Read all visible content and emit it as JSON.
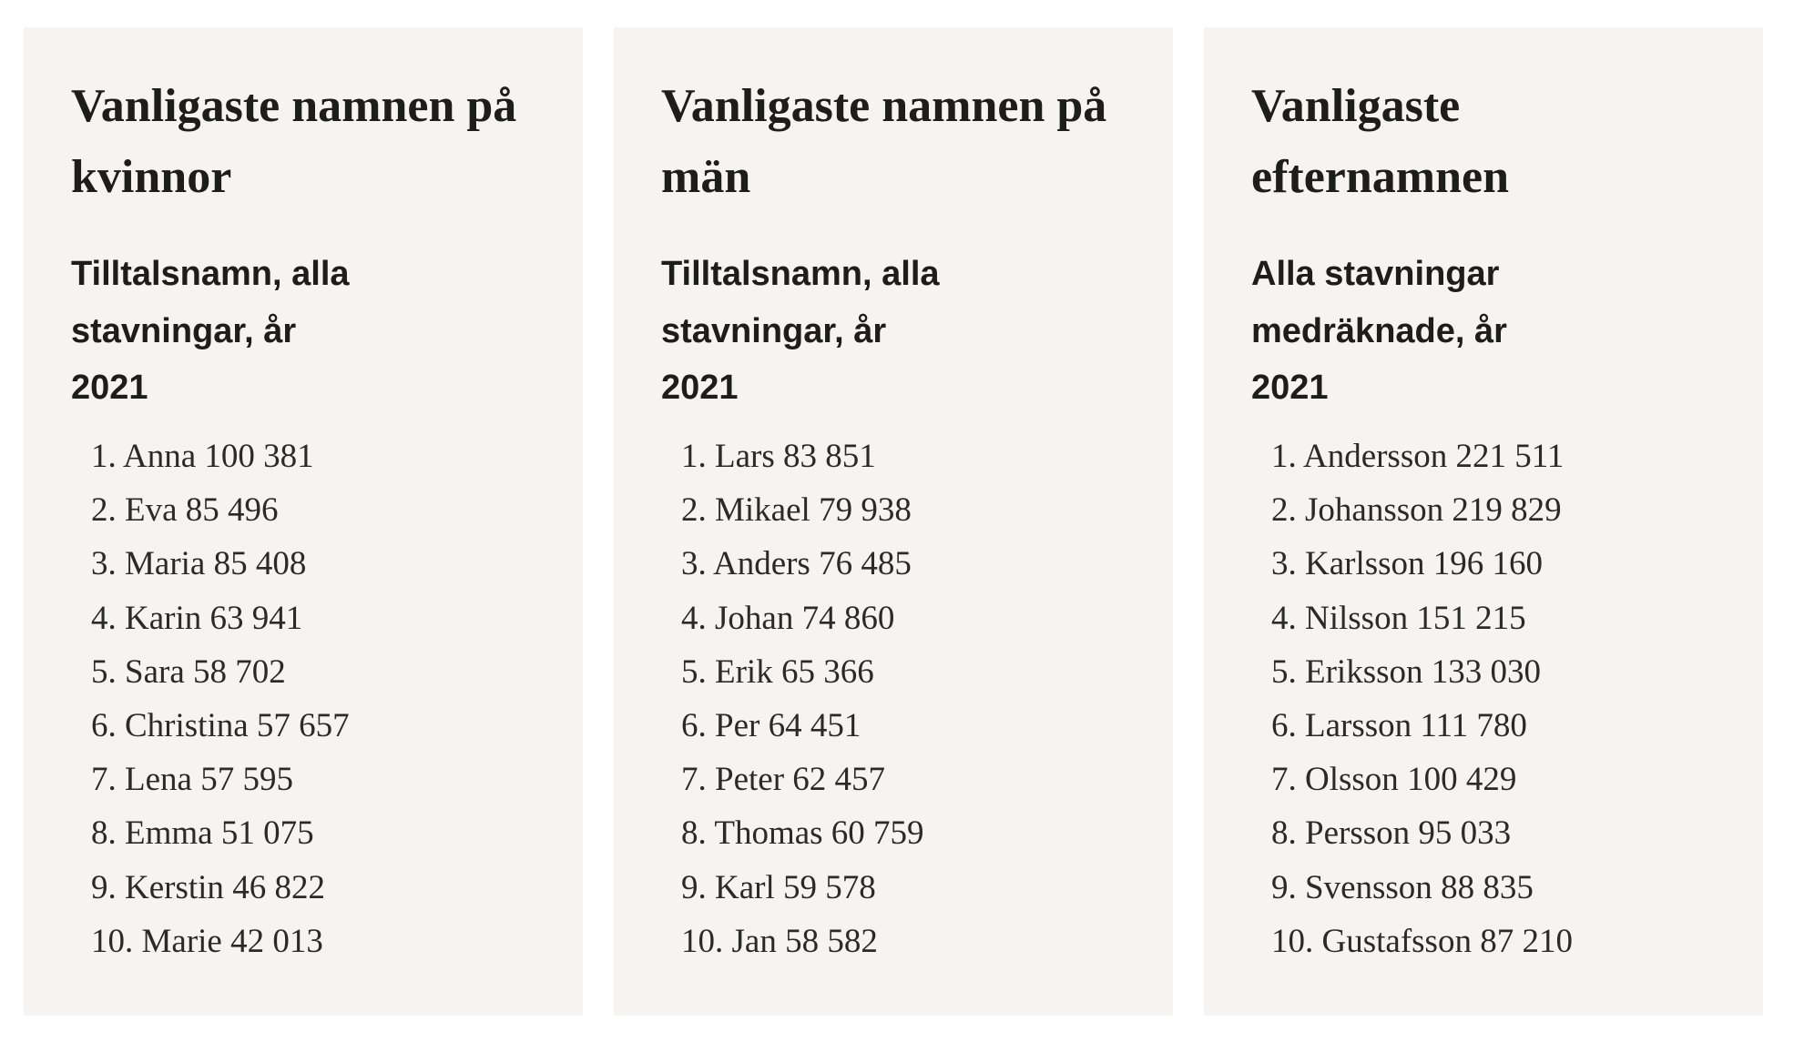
{
  "page": {
    "background_color": "#ffffff",
    "card_background_color": "#f5f4f2",
    "text_color": "#1d1d1c"
  },
  "cards": [
    {
      "title": "Vanligaste namnen på kvinnor",
      "title_lines": [
        "Vanligaste namnen på",
        "kvinnor"
      ],
      "subtitle": "Tilltalsnamn, alla stavningar, år 2021",
      "subtitle_lines": [
        "Tilltalsnamn, alla stavningar, år",
        "2021"
      ],
      "items": [
        {
          "rank": "1.",
          "name": "Anna",
          "count": "100 381"
        },
        {
          "rank": "2.",
          "name": "Eva",
          "count": "85 496"
        },
        {
          "rank": "3.",
          "name": "Maria",
          "count": "85 408"
        },
        {
          "rank": "4.",
          "name": "Karin",
          "count": "63 941"
        },
        {
          "rank": "5.",
          "name": "Sara",
          "count": "58 702"
        },
        {
          "rank": "6.",
          "name": "Christina",
          "count": "57 657"
        },
        {
          "rank": "7.",
          "name": "Lena",
          "count": "57 595"
        },
        {
          "rank": "8.",
          "name": "Emma",
          "count": "51 075"
        },
        {
          "rank": "9.",
          "name": "Kerstin",
          "count": "46 822"
        },
        {
          "rank": "10.",
          "name": "Marie",
          "count": "42 013"
        }
      ]
    },
    {
      "title": "Vanligaste namnen på män",
      "title_lines": [
        "Vanligaste namnen på",
        "män"
      ],
      "subtitle": "Tilltalsnamn, alla stavningar, år 2021",
      "subtitle_lines": [
        "Tilltalsnamn, alla stavningar, år",
        "2021"
      ],
      "items": [
        {
          "rank": "1.",
          "name": "Lars",
          "count": "83 851"
        },
        {
          "rank": "2.",
          "name": "Mikael",
          "count": "79 938"
        },
        {
          "rank": "3.",
          "name": "Anders",
          "count": "76 485"
        },
        {
          "rank": "4.",
          "name": "Johan",
          "count": "74 860"
        },
        {
          "rank": "5.",
          "name": "Erik",
          "count": "65 366"
        },
        {
          "rank": "6.",
          "name": "Per",
          "count": "64 451"
        },
        {
          "rank": "7.",
          "name": "Peter",
          "count": "62 457"
        },
        {
          "rank": "8.",
          "name": "Thomas",
          "count": "60 759"
        },
        {
          "rank": "9.",
          "name": "Karl",
          "count": "59 578"
        },
        {
          "rank": "10.",
          "name": "Jan",
          "count": "58 582"
        }
      ]
    },
    {
      "title": "Vanligaste efternamnen",
      "title_lines": [
        "Vanligaste",
        "efternamnen"
      ],
      "subtitle": "Alla stavningar medräknade, år 2021",
      "subtitle_lines": [
        "Alla stavningar medräknade, år",
        "2021"
      ],
      "items": [
        {
          "rank": "1.",
          "name": "Andersson",
          "count": "221 511"
        },
        {
          "rank": "2.",
          "name": "Johansson",
          "count": "219 829"
        },
        {
          "rank": "3.",
          "name": "Karlsson",
          "count": "196 160"
        },
        {
          "rank": "4.",
          "name": "Nilsson",
          "count": "151 215"
        },
        {
          "rank": "5.",
          "name": "Eriksson",
          "count": "133 030"
        },
        {
          "rank": "6.",
          "name": "Larsson",
          "count": "111 780"
        },
        {
          "rank": "7.",
          "name": "Olsson",
          "count": "100 429"
        },
        {
          "rank": "8.",
          "name": "Persson",
          "count": "95 033"
        },
        {
          "rank": "9.",
          "name": "Svensson",
          "count": "88 835"
        },
        {
          "rank": "10.",
          "name": "Gustafsson",
          "count": "87 210"
        }
      ]
    }
  ]
}
